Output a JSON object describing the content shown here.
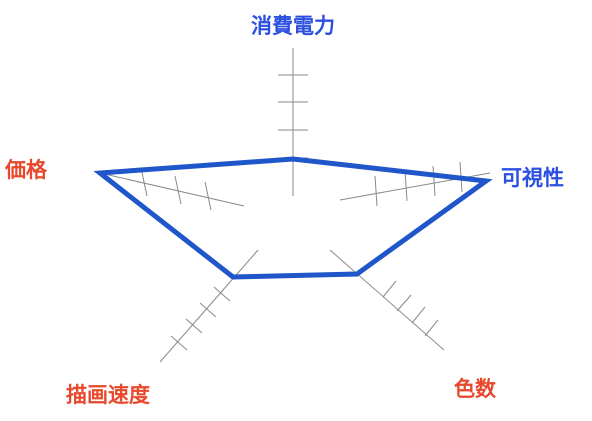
{
  "colors": {
    "shape": "#1f56c9",
    "label_blue": "#2b4fe0",
    "label_red": "#e8482c",
    "axis": "#8a8a8a"
  },
  "axes": [
    {
      "key": "power",
      "label": "消費電力",
      "label_color": "blue"
    },
    {
      "key": "visibility",
      "label": "可視性",
      "label_color": "blue"
    },
    {
      "key": "colors",
      "label": "色数",
      "label_color": "red"
    },
    {
      "key": "speed",
      "label": "描画速度",
      "label_color": "red"
    },
    {
      "key": "price",
      "label": "価格",
      "label_color": "red"
    }
  ]
}
